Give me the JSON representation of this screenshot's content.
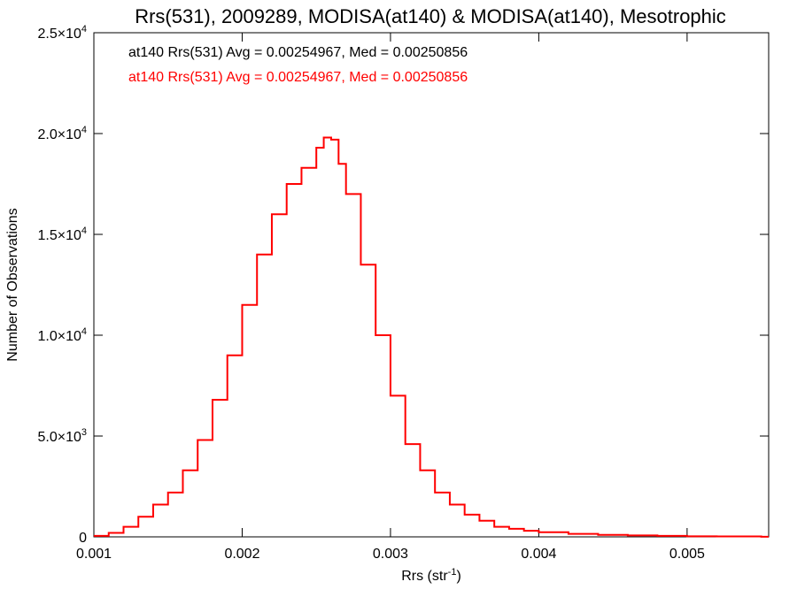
{
  "chart_data": {
    "type": "line",
    "step": true,
    "title": "Rrs(531), 2009289, MODISA(at140) & MODISA(at140), Mesotrophic",
    "xlabel": {
      "base": "Rrs (str",
      "sup": "-1",
      "tail": ")"
    },
    "ylabel": "Number of Observations",
    "xlim": [
      0.001,
      0.00555
    ],
    "ylim": [
      0,
      25000
    ],
    "xticks": [
      {
        "value": 0.001,
        "label": "0.001"
      },
      {
        "value": 0.002,
        "label": "0.002"
      },
      {
        "value": 0.003,
        "label": "0.003"
      },
      {
        "value": 0.004,
        "label": "0.004"
      },
      {
        "value": 0.005,
        "label": "0.005"
      }
    ],
    "yticks": [
      {
        "value": 0,
        "mant": "0",
        "exp": ""
      },
      {
        "value": 5000,
        "mant": "5.0×10",
        "exp": "3"
      },
      {
        "value": 10000,
        "mant": "1.0×10",
        "exp": "4"
      },
      {
        "value": 15000,
        "mant": "1.5×10",
        "exp": "4"
      },
      {
        "value": 20000,
        "mant": "2.0×10",
        "exp": "4"
      },
      {
        "value": 25000,
        "mant": "2.5×10",
        "exp": "4"
      }
    ],
    "legend": {
      "placement": "top-left",
      "entries": [
        {
          "text": "at140 Rrs(531) Avg = 0.00254967, Med = 0.00250856",
          "color": "#000000"
        },
        {
          "text": "at140 Rrs(531) Avg = 0.00254967, Med = 0.00250856",
          "color": "#ff0000"
        }
      ]
    },
    "series": [
      {
        "color": "#ff0000",
        "x": [
          0.001,
          0.0011,
          0.0012,
          0.0013,
          0.0014,
          0.0015,
          0.0016,
          0.0017,
          0.0018,
          0.0019,
          0.002,
          0.0021,
          0.0022,
          0.0023,
          0.0024,
          0.0025,
          0.00255,
          0.0026,
          0.00265,
          0.0027,
          0.0028,
          0.0029,
          0.003,
          0.0031,
          0.0032,
          0.0033,
          0.0034,
          0.0035,
          0.0036,
          0.0037,
          0.0038,
          0.0039,
          0.004,
          0.0042,
          0.0044,
          0.0046,
          0.0048,
          0.005,
          0.0052,
          0.0055
        ],
        "y": [
          50,
          200,
          500,
          1000,
          1600,
          2200,
          3300,
          4800,
          6800,
          9000,
          11500,
          14000,
          16000,
          17500,
          18300,
          19300,
          19800,
          19700,
          18500,
          17000,
          13500,
          10000,
          7000,
          4600,
          3300,
          2200,
          1600,
          1100,
          800,
          500,
          400,
          300,
          230,
          150,
          100,
          70,
          50,
          30,
          20,
          5
        ]
      }
    ]
  }
}
